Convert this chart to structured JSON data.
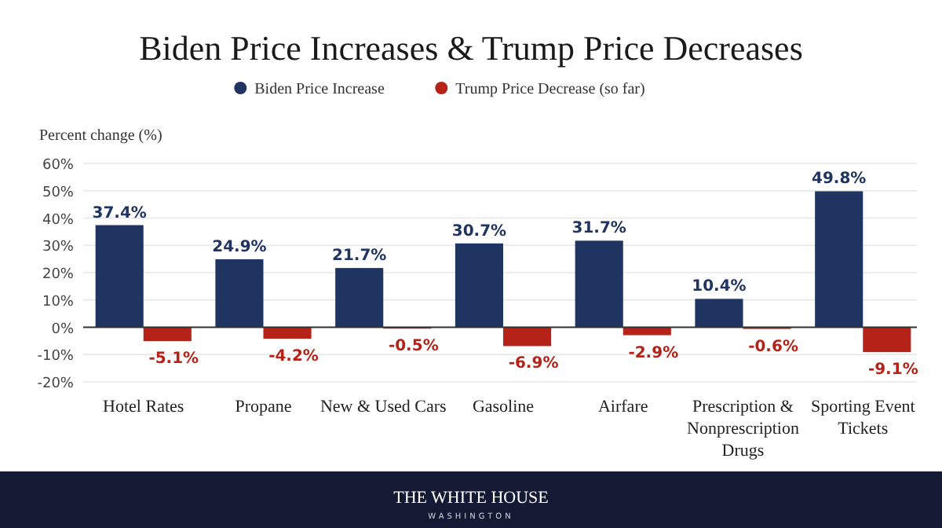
{
  "chart_data": {
    "type": "bar",
    "title": "Biden Price Increases & Trump Price Decreases",
    "ylabel": "Percent change (%)",
    "categories": [
      "Hotel Rates",
      "Propane",
      "New & Used Cars",
      "Gasoline",
      "Airfare",
      "Prescription & Nonprescription Drugs",
      "Sporting Event Tickets"
    ],
    "series": [
      {
        "name": "Biden Price Increase",
        "color": "#1f3461",
        "values": [
          37.4,
          24.9,
          21.7,
          30.7,
          31.7,
          10.4,
          49.8
        ],
        "value_labels": [
          "37.4%",
          "24.9%",
          "21.7%",
          "30.7%",
          "31.7%",
          "10.4%",
          "49.8%"
        ]
      },
      {
        "name": "Trump Price Decrease (so far)",
        "color": "#b52218",
        "values": [
          -5.1,
          -4.2,
          -0.5,
          -6.9,
          -2.9,
          -0.6,
          -9.1
        ],
        "value_labels": [
          "-5.1%",
          "-4.2%",
          "-0.5%",
          "-6.9%",
          "-2.9%",
          "-0.6%",
          "-9.1%"
        ]
      }
    ],
    "ylim": [
      -20,
      60
    ],
    "yticks": [
      {
        "value": -20,
        "label": "-20%"
      },
      {
        "value": -10,
        "label": "-10%"
      },
      {
        "value": 0,
        "label": "0%"
      },
      {
        "value": 10,
        "label": "10%"
      },
      {
        "value": 20,
        "label": "20%"
      },
      {
        "value": 30,
        "label": "30%"
      },
      {
        "value": 40,
        "label": "40%"
      },
      {
        "value": 50,
        "label": "50%"
      },
      {
        "value": 60,
        "label": "60%"
      }
    ],
    "grid": "y",
    "legend": "top",
    "annotations": [
      "THE WHITE HOUSE",
      "WASHINGTON"
    ]
  }
}
